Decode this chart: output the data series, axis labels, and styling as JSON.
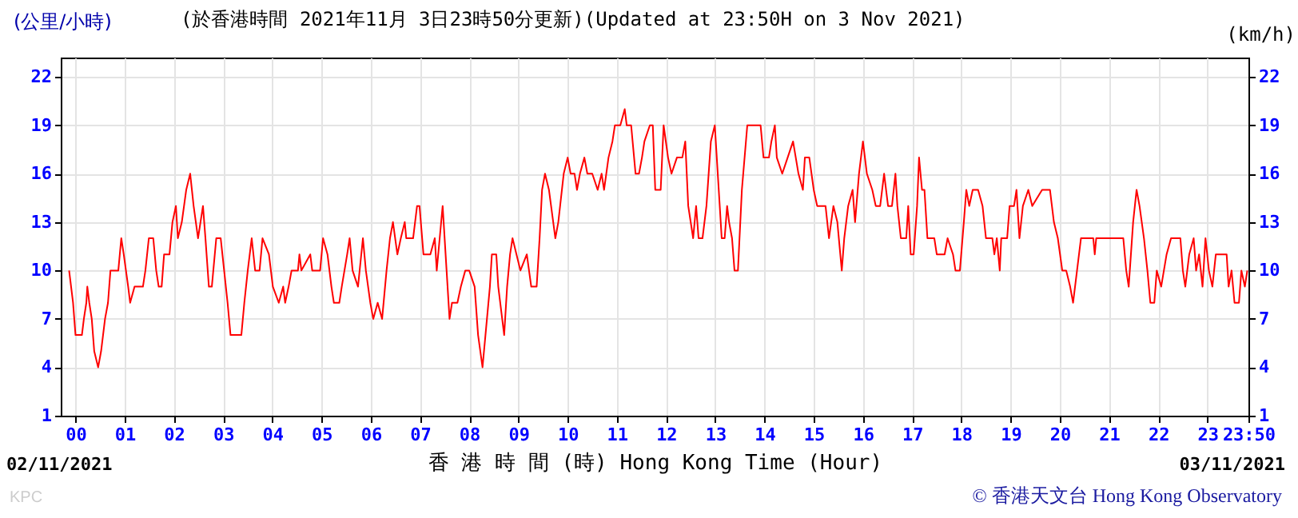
{
  "chart_data": {
    "type": "line",
    "title": "(於香港時間 2021年11月 3日23時50分更新)(Updated at 23:50H on 3 Nov 2021)",
    "xlabel": "香 港 時 間 (時) Hong Kong Time (Hour)",
    "ylabel": "(公里/小時)",
    "y2label": "(km/h)",
    "annotations": [
      "02/11/2021",
      "03/11/2021",
      "KPC",
      "© 香港天文台 Hong Kong Observatory"
    ],
    "x": [
      -0.13,
      -0.05,
      0,
      0.13,
      0.17,
      0.22,
      0.24,
      0.28,
      0.33,
      0.38,
      0.46,
      0.52,
      0.6,
      0.66,
      0.71,
      0.87,
      0.93,
      0.98,
      1.07,
      1.11,
      1.2,
      1.37,
      1.42,
      1.49,
      1.58,
      1.64,
      1.69,
      1.75,
      1.8,
      1.91,
      1.97,
      2.04,
      2.08,
      2.16,
      2.25,
      2.33,
      2.4,
      2.49,
      2.59,
      2.64,
      2.71,
      2.77,
      2.86,
      2.95,
      3.02,
      3.09,
      3.15,
      3.37,
      3.43,
      3.5,
      3.58,
      3.65,
      3.74,
      3.8,
      3.93,
      4.01,
      4.13,
      4.22,
      4.26,
      4.33,
      4.39,
      4.52,
      4.55,
      4.59,
      4.77,
      4.81,
      4.97,
      5.03,
      5.12,
      5.2,
      5.25,
      5.36,
      5.41,
      5.52,
      5.57,
      5.63,
      5.74,
      5.84,
      5.9,
      5.99,
      6.05,
      6.14,
      6.23,
      6.32,
      6.39,
      6.45,
      6.54,
      6.61,
      6.69,
      6.72,
      6.86,
      6.94,
      6.99,
      7.07,
      7.21,
      7.3,
      7.34,
      7.4,
      7.46,
      7.54,
      7.6,
      7.65,
      7.76,
      7.83,
      7.92,
      8.0,
      8.11,
      8.18,
      8.27,
      8.33,
      8.42,
      8.46,
      8.55,
      8.59,
      8.71,
      8.77,
      8.83,
      8.88,
      8.96,
      9.04,
      9.17,
      9.26,
      9.37,
      9.43,
      9.48,
      9.54,
      9.62,
      9.75,
      9.81,
      9.92,
      10.0,
      10.06,
      10.14,
      10.19,
      10.25,
      10.34,
      10.4,
      10.5,
      10.61,
      10.69,
      10.74,
      10.83,
      10.91,
      10.96,
      11.07,
      11.16,
      11.2,
      11.29,
      11.38,
      11.45,
      11.51,
      11.56,
      11.67,
      11.73,
      11.78,
      11.89,
      11.95,
      12.04,
      12.11,
      12.22,
      12.33,
      12.39,
      12.45,
      12.55,
      12.61,
      12.66,
      12.74,
      12.82,
      12.91,
      12.99,
      13.07,
      13.13,
      13.19,
      13.24,
      13.28,
      13.34,
      13.39,
      13.46,
      13.54,
      13.65,
      13.92,
      13.98,
      14.09,
      14.14,
      14.21,
      14.25,
      14.36,
      14.47,
      14.58,
      14.69,
      14.78,
      14.82,
      14.91,
      15.0,
      15.07,
      15.13,
      15.24,
      15.31,
      15.4,
      15.48,
      15.57,
      15.62,
      15.7,
      15.79,
      15.84,
      15.92,
      16.0,
      16.08,
      16.19,
      16.26,
      16.35,
      16.43,
      16.51,
      16.59,
      16.66,
      16.7,
      16.77,
      16.88,
      16.92,
      16.97,
      17.03,
      17.1,
      17.14,
      17.2,
      17.25,
      17.31,
      17.45,
      17.5,
      17.66,
      17.72,
      17.83,
      17.88,
      17.97,
      18.05,
      18.1,
      18.16,
      18.23,
      18.34,
      18.43,
      18.5,
      18.63,
      18.67,
      18.72,
      18.78,
      18.81,
      18.93,
      18.98,
      19.07,
      19.12,
      19.18,
      19.25,
      19.36,
      19.44,
      19.64,
      19.8,
      19.88,
      19.96,
      20.05,
      20.13,
      20.21,
      20.27,
      20.35,
      20.43,
      20.68,
      20.71,
      20.74,
      21.29,
      21.35,
      21.4,
      21.49,
      21.56,
      21.62,
      21.71,
      21.78,
      21.84,
      21.92,
      21.97,
      22.06,
      22.17,
      22.26,
      22.45,
      22.5,
      22.55,
      22.63,
      22.72,
      22.77,
      22.83,
      22.9,
      22.96,
      23.03,
      23.1,
      23.17,
      23.39,
      23.43,
      23.49,
      23.55,
      23.64,
      23.69,
      23.76,
      23.81
    ],
    "series": [
      {
        "color": "#ff0000",
        "values": [
          10,
          8,
          6,
          6,
          7,
          8,
          9,
          8,
          7,
          5,
          4,
          5,
          7,
          8,
          10,
          10,
          12,
          11,
          9,
          8,
          9,
          9,
          10,
          12,
          12,
          10,
          9,
          9,
          11,
          11,
          13,
          14,
          12,
          13,
          15,
          16,
          14,
          12,
          14,
          12,
          9,
          9,
          12,
          12,
          10,
          8,
          6,
          6,
          8,
          10,
          12,
          10,
          10,
          12,
          11,
          9,
          8,
          9,
          8,
          9,
          10,
          10,
          11,
          10,
          11,
          10,
          10,
          12,
          11,
          9,
          8,
          8,
          9,
          11,
          12,
          10,
          9,
          12,
          10,
          8,
          7,
          8,
          7,
          10,
          12,
          13,
          11,
          12,
          13,
          12,
          12,
          14,
          14,
          11,
          11,
          12,
          10,
          12,
          14,
          10,
          7,
          8,
          8,
          9,
          10,
          10,
          9,
          6,
          4,
          6,
          9,
          11,
          11,
          9,
          6,
          9,
          11,
          12,
          11,
          10,
          11,
          9,
          9,
          12,
          15,
          16,
          15,
          12,
          13,
          16,
          17,
          16,
          16,
          15,
          16,
          17,
          16,
          16,
          15,
          16,
          15,
          17,
          18,
          19,
          19,
          20,
          19,
          19,
          16,
          16,
          17,
          18,
          19,
          19,
          15,
          15,
          19,
          17,
          16,
          17,
          17,
          18,
          14,
          12,
          14,
          12,
          12,
          14,
          18,
          19,
          15,
          12,
          12,
          14,
          13,
          12,
          10,
          10,
          15,
          19,
          19,
          17,
          17,
          18,
          19,
          17,
          16,
          17,
          18,
          16,
          15,
          17,
          17,
          15,
          14,
          14,
          14,
          12,
          14,
          13,
          10,
          12,
          14,
          15,
          13,
          16,
          18,
          16,
          15,
          14,
          14,
          16,
          14,
          14,
          16,
          14,
          12,
          12,
          14,
          11,
          11,
          14,
          17,
          15,
          15,
          12,
          12,
          11,
          11,
          12,
          11,
          10,
          10,
          13,
          15,
          14,
          15,
          15,
          14,
          12,
          12,
          11,
          12,
          10,
          12,
          12,
          14,
          14,
          15,
          12,
          14,
          15,
          14,
          15,
          15,
          13,
          12,
          10,
          10,
          9,
          8,
          10,
          12,
          12,
          11,
          12,
          12,
          10,
          9,
          13,
          15,
          14,
          12,
          10,
          8,
          8,
          10,
          9,
          11,
          12,
          12,
          10,
          9,
          11,
          12,
          10,
          11,
          9,
          12,
          10,
          9,
          11,
          11,
          9,
          10,
          8,
          8,
          10,
          9,
          10
        ]
      }
    ],
    "xlim": [
      -0.3,
      23.833
    ],
    "ylim": [
      1,
      23.2
    ],
    "y2lim": [
      1,
      23.2
    ],
    "xticks": [
      {
        "value": 0,
        "label": "00"
      },
      {
        "value": 1,
        "label": "01"
      },
      {
        "value": 2,
        "label": "02"
      },
      {
        "value": 3,
        "label": "03"
      },
      {
        "value": 4,
        "label": "04"
      },
      {
        "value": 5,
        "label": "05"
      },
      {
        "value": 6,
        "label": "06"
      },
      {
        "value": 7,
        "label": "07"
      },
      {
        "value": 8,
        "label": "08"
      },
      {
        "value": 9,
        "label": "09"
      },
      {
        "value": 10,
        "label": "10"
      },
      {
        "value": 11,
        "label": "11"
      },
      {
        "value": 12,
        "label": "12"
      },
      {
        "value": 13,
        "label": "13"
      },
      {
        "value": 14,
        "label": "14"
      },
      {
        "value": 15,
        "label": "15"
      },
      {
        "value": 16,
        "label": "16"
      },
      {
        "value": 17,
        "label": "17"
      },
      {
        "value": 18,
        "label": "18"
      },
      {
        "value": 19,
        "label": "19"
      },
      {
        "value": 20,
        "label": "20"
      },
      {
        "value": 21,
        "label": "21"
      },
      {
        "value": 22,
        "label": "22"
      },
      {
        "value": 23,
        "label": "23"
      },
      {
        "value": 23.833,
        "label": "23:50"
      }
    ],
    "yticks": [
      1,
      4,
      7,
      10,
      13,
      16,
      19,
      22
    ],
    "y2ticks": [
      1,
      4,
      7,
      10,
      13,
      16,
      19,
      22
    ],
    "grid": true,
    "marker": "none",
    "line_style": "solid"
  }
}
